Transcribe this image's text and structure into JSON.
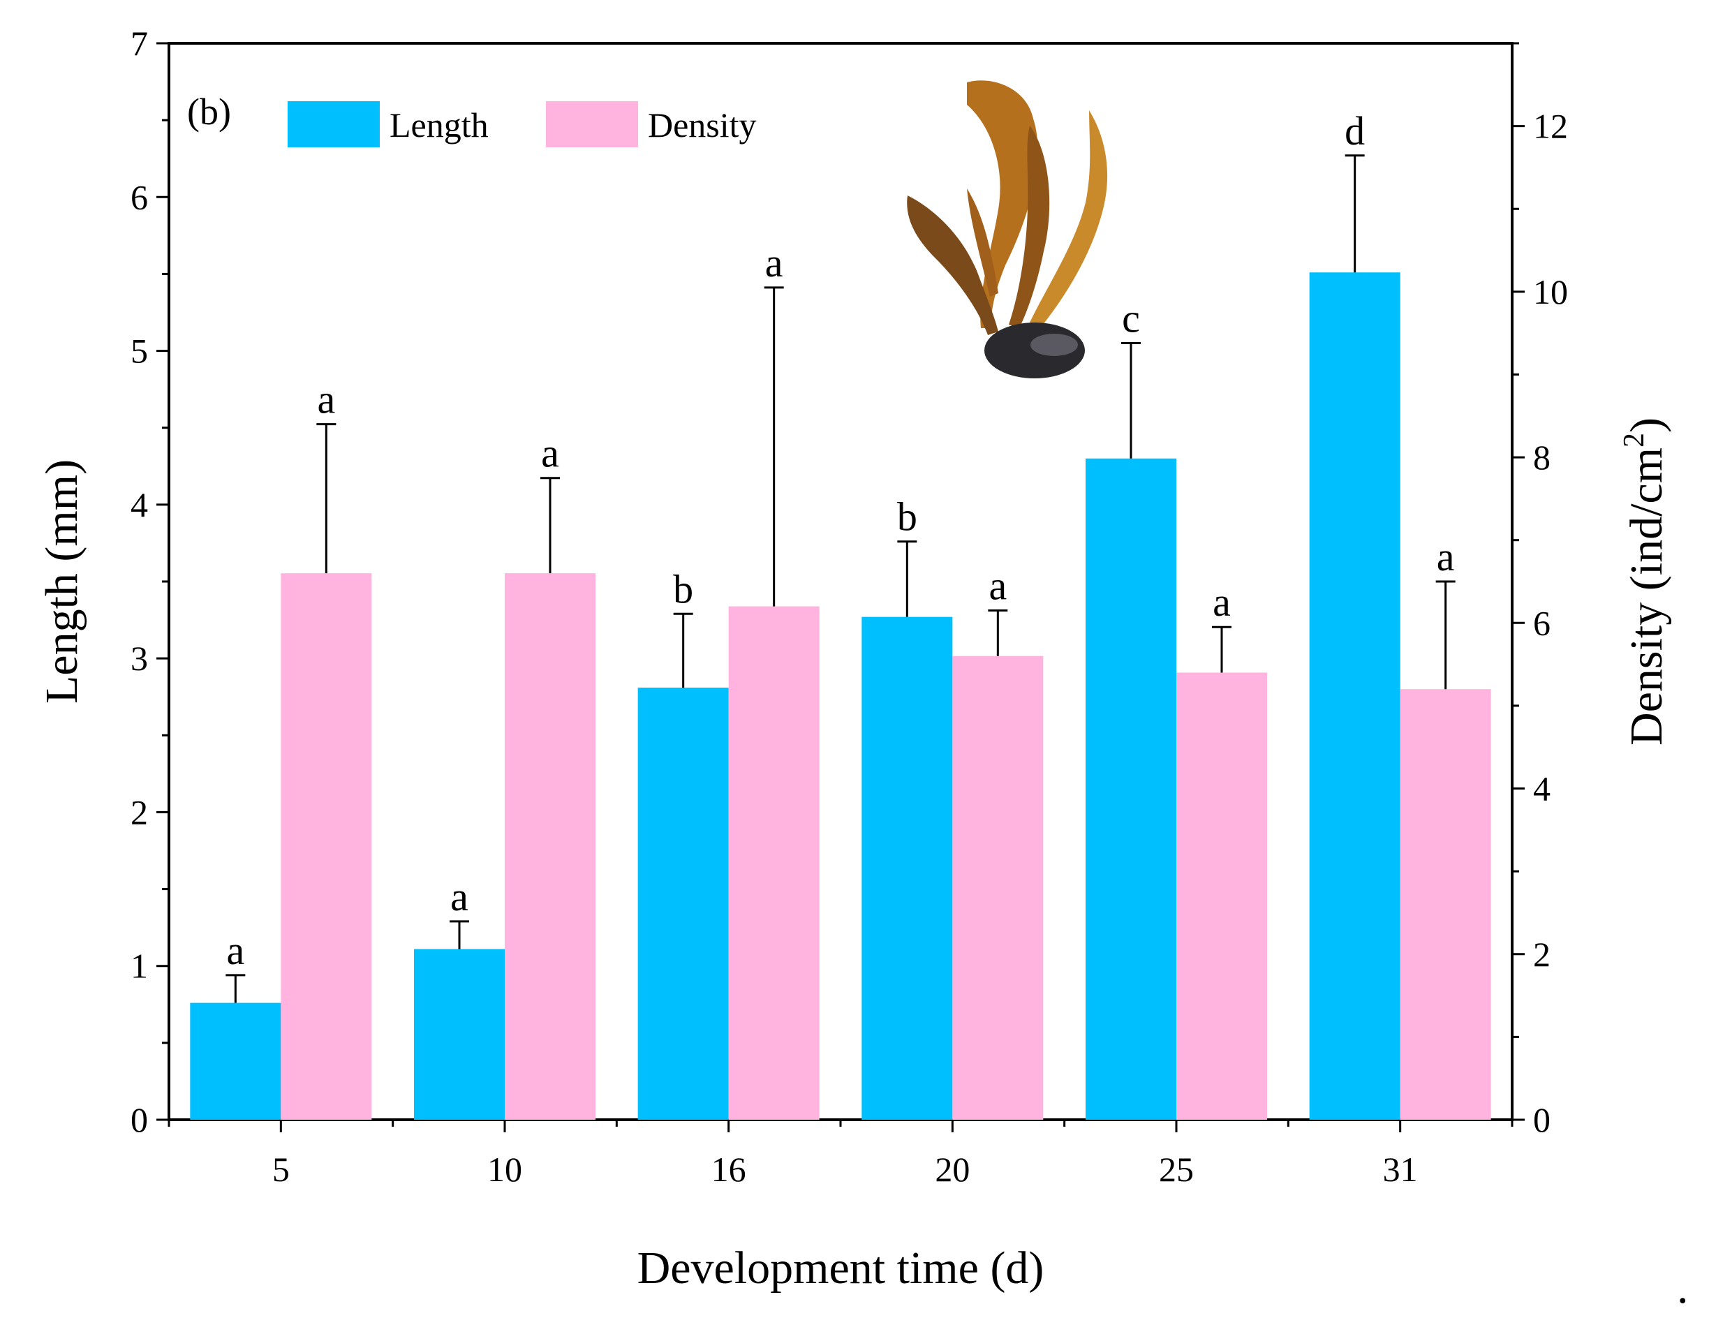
{
  "chart_data": {
    "type": "bar",
    "panel_label": "(b)",
    "categories": [
      "5",
      "10",
      "16",
      "20",
      "25",
      "31"
    ],
    "xlabel": "Development time (d)",
    "ylabel_left": "Length (mm)",
    "ylabel_right": "Density (ind/cm",
    "ylabel_right_sup": "2",
    "ylabel_right_close": ")",
    "ylim_left": [
      0,
      7
    ],
    "ylim_right": [
      0,
      13
    ],
    "left_ticks": [
      "0",
      "1",
      "2",
      "3",
      "4",
      "5",
      "6",
      "7"
    ],
    "right_ticks": [
      "0",
      "2",
      "4",
      "6",
      "8",
      "10",
      "12"
    ],
    "series": [
      {
        "name": "Length",
        "axis": "left",
        "color": "#00BFFF",
        "values": [
          0.76,
          1.11,
          2.81,
          3.27,
          4.3,
          5.51
        ],
        "errors": [
          0.18,
          0.18,
          0.48,
          0.49,
          0.75,
          0.76
        ],
        "significance": [
          "a",
          "a",
          "b",
          "b",
          "c",
          "d"
        ]
      },
      {
        "name": "Density",
        "axis": "right",
        "color": "#FFB3DE",
        "values": [
          6.6,
          6.6,
          6.2,
          5.6,
          5.4,
          5.2
        ],
        "errors": [
          1.8,
          1.15,
          3.85,
          0.55,
          0.55,
          1.3
        ],
        "significance": [
          "a",
          "a",
          "a",
          "a",
          "a",
          "a"
        ]
      }
    ],
    "legend": [
      "Length",
      "Density"
    ],
    "legend_position": "top-left",
    "inset_image": "seaweed-on-mussel-photo",
    "trailing_mark": "."
  }
}
